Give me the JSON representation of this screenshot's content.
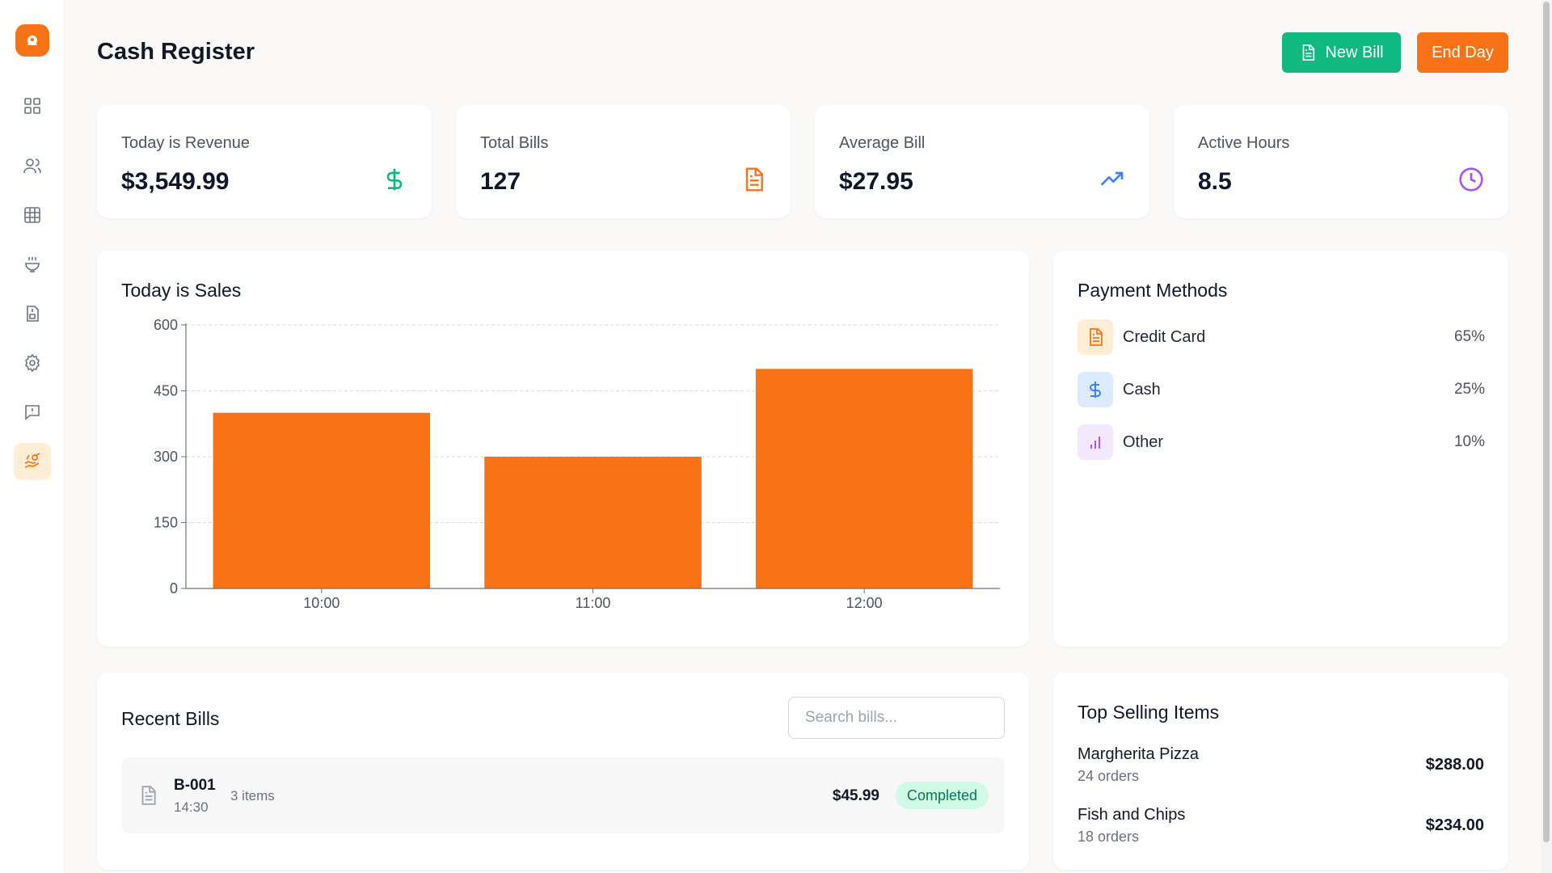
{
  "header": {
    "title": "Cash Register",
    "new_bill_label": "New Bill",
    "end_day_label": "End Day"
  },
  "sidebar": {
    "items": [
      {
        "icon": "grid-icon"
      },
      {
        "icon": "users-icon"
      },
      {
        "icon": "table-icon"
      },
      {
        "icon": "bowl-icon"
      },
      {
        "icon": "clipboard-icon"
      },
      {
        "icon": "gear-icon"
      },
      {
        "icon": "message-alert-icon"
      },
      {
        "icon": "hand-coins-icon",
        "active": true
      }
    ]
  },
  "stats": [
    {
      "label": "Today is Revenue",
      "value": "$3,549.99",
      "icon": "dollar-icon",
      "color": "#10b981"
    },
    {
      "label": "Total Bills",
      "value": "127",
      "icon": "document-icon",
      "color": "#f97316"
    },
    {
      "label": "Average Bill",
      "value": "$27.95",
      "icon": "trending-up-icon",
      "color": "#3b82f6"
    },
    {
      "label": "Active Hours",
      "value": "8.5",
      "icon": "clock-icon",
      "color": "#a855f7"
    }
  ],
  "sales": {
    "title": "Today is Sales",
    "chart_data": {
      "type": "bar",
      "categories": [
        "10:00",
        "11:00",
        "12:00"
      ],
      "values": [
        400,
        300,
        500
      ],
      "ylim": [
        0,
        600
      ],
      "yticks": [
        0,
        150,
        300,
        450,
        600
      ],
      "grid": true,
      "color": "#f97316"
    }
  },
  "payment_methods": {
    "title": "Payment Methods",
    "items": [
      {
        "label": "Credit Card",
        "pct": "65%",
        "icon": "document-icon",
        "color": "#f97316",
        "bg": "#ffedd5"
      },
      {
        "label": "Cash",
        "pct": "25%",
        "icon": "dollar-icon",
        "color": "#3b82f6",
        "bg": "#dbeafe"
      },
      {
        "label": "Other",
        "pct": "10%",
        "icon": "bar-chart-icon",
        "color": "#a855f7",
        "bg": "#f3e8ff"
      }
    ]
  },
  "recent_bills": {
    "title": "Recent Bills",
    "search_placeholder": "Search bills...",
    "rows": [
      {
        "id": "B-001",
        "time": "14:30",
        "items": "3 items",
        "amount": "$45.99",
        "status": "Completed"
      }
    ]
  },
  "top_selling": {
    "title": "Top Selling Items",
    "items": [
      {
        "name": "Margherita Pizza",
        "orders": "24 orders",
        "amount": "$288.00"
      },
      {
        "name": "Fish and Chips",
        "orders": "18 orders",
        "amount": "$234.00"
      }
    ]
  }
}
